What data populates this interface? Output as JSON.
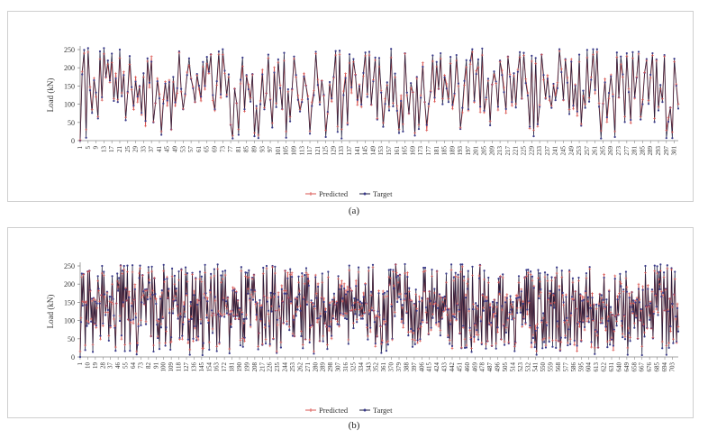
{
  "figure": {
    "caption_a": "(a)",
    "caption_b": "(b)"
  },
  "chart_data": [
    {
      "type": "line",
      "panel": "a",
      "ylabel": "Load (kN)",
      "ylim": [
        0,
        250
      ],
      "yticks": [
        0,
        50,
        100,
        150,
        200,
        250
      ],
      "xlim": [
        1,
        303
      ],
      "xticks": [
        1,
        5,
        9,
        13,
        17,
        21,
        25,
        29,
        33,
        37,
        41,
        45,
        49,
        53,
        57,
        61,
        65,
        69,
        73,
        77,
        81,
        85,
        89,
        93,
        97,
        101,
        105,
        109,
        113,
        117,
        121,
        125,
        129,
        133,
        137,
        141,
        145,
        149,
        153,
        157,
        161,
        165,
        169,
        173,
        177,
        181,
        185,
        189,
        193,
        197,
        201,
        205,
        209,
        213,
        217,
        221,
        225,
        229,
        233,
        237,
        241,
        245,
        249,
        253,
        257,
        261,
        265,
        269,
        273,
        277,
        281,
        285,
        289,
        293,
        297,
        301
      ],
      "legend_position": "bottom-center",
      "grid": false,
      "series": [
        {
          "name": "Predicted",
          "color": "#d9534f",
          "marker": "plus"
        },
        {
          "name": "Target",
          "color": "#1a1a3a",
          "marker": "circle"
        }
      ],
      "n_points": 303,
      "seed": 7
    },
    {
      "type": "line",
      "panel": "b",
      "ylabel": "Load (kN)",
      "ylim": [
        0,
        250
      ],
      "yticks": [
        0,
        50,
        100,
        150,
        200,
        250
      ],
      "xlim": [
        1,
        710
      ],
      "xticks": [
        1,
        10,
        19,
        28,
        37,
        46,
        55,
        64,
        73,
        82,
        91,
        100,
        109,
        118,
        127,
        136,
        145,
        154,
        163,
        172,
        181,
        190,
        199,
        208,
        217,
        226,
        235,
        244,
        253,
        262,
        271,
        280,
        289,
        298,
        307,
        316,
        325,
        334,
        343,
        352,
        361,
        370,
        379,
        388,
        397,
        406,
        415,
        424,
        433,
        442,
        451,
        460,
        469,
        478,
        487,
        496,
        505,
        514,
        523,
        532,
        541,
        550,
        559,
        568,
        577,
        586,
        595,
        604,
        613,
        622,
        631,
        640,
        649,
        658,
        667,
        676,
        685,
        694,
        703
      ],
      "legend_position": "bottom-center",
      "grid": false,
      "series": [
        {
          "name": "Predicted",
          "color": "#d9534f",
          "marker": "plus"
        },
        {
          "name": "Target",
          "color": "#1a1a3a",
          "marker": "circle"
        }
      ],
      "n_points": 710,
      "seed": 13
    }
  ]
}
